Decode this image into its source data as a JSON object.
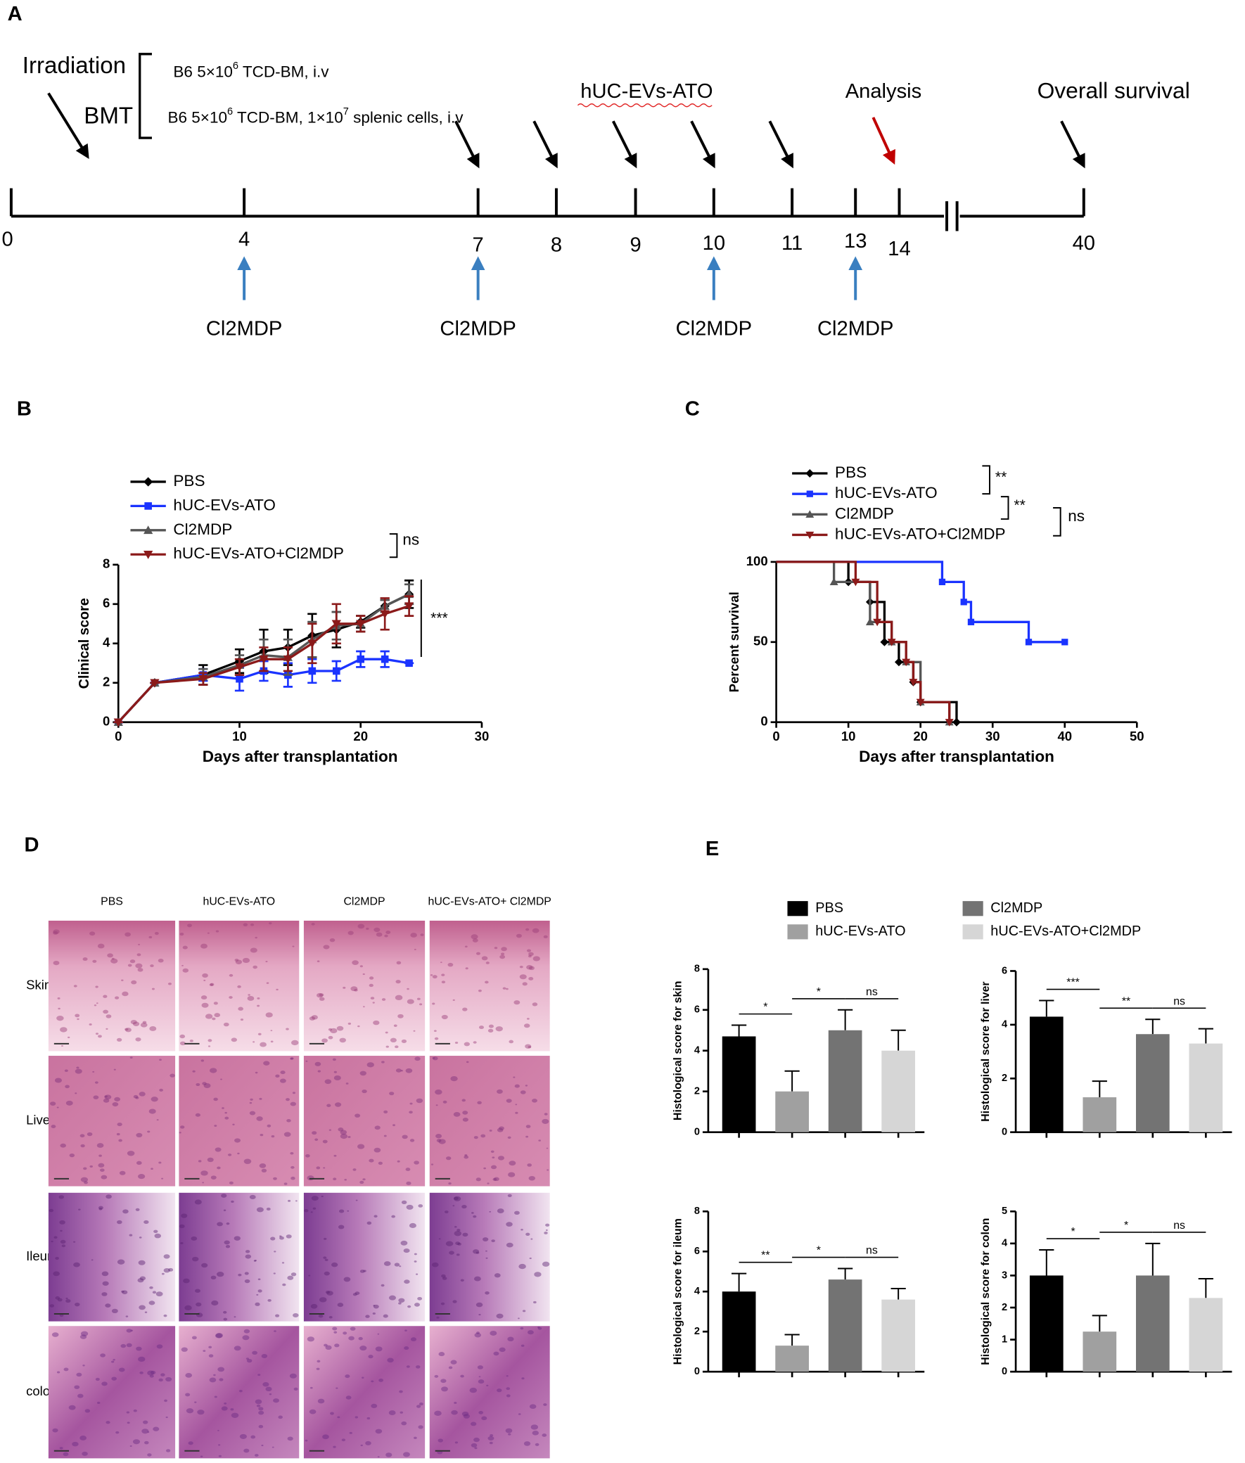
{
  "timeline": {
    "panel": "A",
    "irradiation": "Irradiation",
    "bmt": "BMT",
    "regimen1": [
      "B6 5×10",
      "6",
      " TCD-BM, i.v"
    ],
    "regimen2": [
      "B6 5×10",
      "6",
      " TCD-BM, 1×10",
      "7",
      " splenic cells, i.v"
    ],
    "treatment": "hUC-EVs-ATO",
    "analysis": "Analysis",
    "overall": "Overall survival",
    "days": [
      "0",
      "4",
      "7",
      "8",
      "9",
      "10",
      "11",
      "13",
      "14",
      "40"
    ],
    "depletion": [
      "Cl2MDP",
      "Cl2MDP",
      "Cl2MDP",
      "Cl2MDP"
    ]
  },
  "histology": {
    "panel": "D",
    "columns": [
      "PBS",
      "hUC-EVs-ATO",
      "Cl2MDP",
      "hUC-EVs-ATO+ Cl2MDP"
    ],
    "rows": [
      "Skin",
      "Liver",
      "Ileum",
      "colon"
    ]
  },
  "panel_e": {
    "panel": "E",
    "legend": [
      {
        "name": "PBS",
        "color": "#000000"
      },
      {
        "name": "hUC-EVs-ATO",
        "color": "#a0a0a0"
      },
      {
        "name": "Cl2MDP",
        "color": "#737373"
      },
      {
        "name": "hUC-EVs-ATO+Cl2MDP",
        "color": "#d6d6d6"
      }
    ]
  },
  "chart_data": [
    {
      "panel": "B",
      "type": "line",
      "x": [
        0,
        3,
        7,
        10,
        12,
        14,
        16,
        18,
        20,
        22,
        24
      ],
      "xlim": [
        0,
        30
      ],
      "xticks": [
        0,
        10,
        20,
        30
      ],
      "ylim": [
        0,
        8
      ],
      "yticks": [
        0,
        2,
        4,
        6,
        8
      ],
      "xlabel": "Days after transplantation",
      "ylabel": "Clinical score",
      "series": [
        {
          "name": "PBS",
          "color": "#000000",
          "marker": "diamond",
          "values": [
            0,
            2,
            2.4,
            3.1,
            3.6,
            3.8,
            4.4,
            4.7,
            5.1,
            5.9,
            6.5
          ],
          "errors": [
            0,
            0,
            0.5,
            0.6,
            1.1,
            0.9,
            1.1,
            0.9,
            0.3,
            0.3,
            0.7
          ]
        },
        {
          "name": "hUC-EVs-ATO",
          "color": "#1a33ff",
          "marker": "square",
          "values": [
            0,
            2,
            2.4,
            2.2,
            2.6,
            2.4,
            2.6,
            2.6,
            3.2,
            3.2,
            3.0
          ],
          "errors": [
            0,
            0,
            0.3,
            0.6,
            0.5,
            0.6,
            0.6,
            0.5,
            0.4,
            0.4,
            0
          ]
        },
        {
          "name": "Cl2MDP",
          "color": "#555555",
          "marker": "triangle",
          "values": [
            0,
            2,
            2.3,
            2.9,
            3.4,
            3.3,
            4.2,
            4.9,
            5.0,
            5.9,
            6.5
          ],
          "errors": [
            0,
            0,
            0.4,
            0.5,
            0.8,
            0.9,
            0.9,
            0.7,
            0.4,
            0.3,
            0.5
          ]
        },
        {
          "name": "hUC-EVs-ATO+Cl2MDP",
          "color": "#8b1a1a",
          "marker": "triangle-down",
          "values": [
            0,
            2,
            2.2,
            2.8,
            3.2,
            3.2,
            4.0,
            5.0,
            5.0,
            5.5,
            5.9
          ],
          "errors": [
            0,
            0,
            0.3,
            0.4,
            0.6,
            0.6,
            1.0,
            1.0,
            0.4,
            0.8,
            0.5
          ]
        }
      ],
      "annotations": [
        "ns",
        "***"
      ]
    },
    {
      "panel": "C",
      "type": "survival",
      "xlim": [
        0,
        50
      ],
      "xticks": [
        0,
        10,
        20,
        30,
        40,
        50
      ],
      "ylim": [
        0,
        100
      ],
      "yticks": [
        0,
        50,
        100
      ],
      "xlabel": "Days after transplantation",
      "ylabel": "Percent survival",
      "series": [
        {
          "name": "PBS",
          "color": "#000000",
          "marker": "diamond",
          "x": [
            0,
            10,
            13,
            15,
            17,
            19,
            20,
            25
          ],
          "values": [
            100,
            87.5,
            75,
            50,
            37.5,
            25,
            12.5,
            0
          ]
        },
        {
          "name": "hUC-EVs-ATO",
          "color": "#1a33ff",
          "marker": "square",
          "x": [
            0,
            23,
            26,
            27,
            35,
            40
          ],
          "values": [
            100,
            87.5,
            75,
            62.5,
            50,
            50
          ]
        },
        {
          "name": "Cl2MDP",
          "color": "#555555",
          "marker": "triangle",
          "x": [
            0,
            8,
            13,
            16,
            18,
            20,
            24
          ],
          "values": [
            100,
            87.5,
            62.5,
            50,
            37.5,
            12.5,
            0
          ]
        },
        {
          "name": "hUC-EVs-ATO+Cl2MDP",
          "color": "#8b1a1a",
          "marker": "triangle-down",
          "x": [
            0,
            11,
            14,
            16,
            18,
            19,
            20,
            24
          ],
          "values": [
            100,
            87.5,
            62.5,
            50,
            37.5,
            25,
            12.5,
            0
          ]
        }
      ],
      "annotations": [
        "**",
        "**",
        "ns"
      ]
    },
    {
      "type": "bar",
      "ylabel": "Histological score for skin",
      "values": [
        4.7,
        2.0,
        5.0,
        4.0
      ],
      "errors": [
        0.55,
        1.0,
        1.0,
        1.0
      ],
      "ylim": [
        0,
        8
      ],
      "yticks": [
        0,
        2,
        4,
        6,
        8
      ],
      "significance": [
        "*",
        "*",
        "ns"
      ]
    },
    {
      "type": "bar",
      "ylabel": "Histological score for liver",
      "values": [
        4.3,
        1.3,
        3.65,
        3.3
      ],
      "errors": [
        0.6,
        0.6,
        0.55,
        0.55
      ],
      "ylim": [
        0,
        6
      ],
      "yticks": [
        0,
        2,
        4,
        6
      ],
      "significance": [
        "***",
        "**",
        "ns"
      ]
    },
    {
      "type": "bar",
      "ylabel": "Histological score for ileum",
      "values": [
        4.0,
        1.3,
        4.6,
        3.6
      ],
      "errors": [
        0.9,
        0.55,
        0.55,
        0.55
      ],
      "ylim": [
        0,
        8
      ],
      "yticks": [
        0,
        2,
        4,
        6,
        8
      ],
      "significance": [
        "**",
        "*",
        "ns"
      ]
    },
    {
      "type": "bar",
      "ylabel": "Histological score for colon",
      "values": [
        3.0,
        1.25,
        3.0,
        2.3
      ],
      "errors": [
        0.8,
        0.5,
        1.0,
        0.6
      ],
      "ylim": [
        0,
        5
      ],
      "yticks": [
        0,
        1,
        2,
        3,
        4,
        5
      ],
      "significance": [
        "*",
        "*",
        "ns"
      ]
    }
  ]
}
